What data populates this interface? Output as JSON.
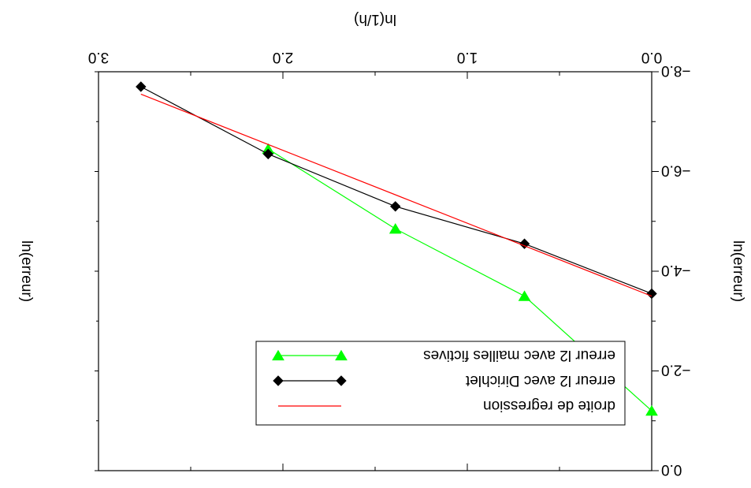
{
  "chart_data": {
    "type": "line",
    "title": "",
    "xlabel": "ln(1/h)",
    "ylabel": "ln(erreur)",
    "ylabel_outer": "ln(erreur)",
    "xlim": [
      0.0,
      3.0
    ],
    "ylim": [
      -8.0,
      0.0
    ],
    "x_ticks": [
      0.0,
      1.0,
      2.0,
      3.0
    ],
    "x_tick_labels": [
      "0.0",
      "1.0",
      "2.0",
      "3.0"
    ],
    "y_ticks": [
      -8.0,
      -6.0,
      -4.0,
      -2.0,
      0.0
    ],
    "y_tick_labels": [
      "−8.0",
      "−6.0",
      "−4.0",
      "−2.0",
      "0.0"
    ],
    "grid": false,
    "legend_position": "bottom-right",
    "orientation": "rotated 180 degrees",
    "series": [
      {
        "name": "erreur l2 avec mailles fictives",
        "color": "#00ff00",
        "marker": "triangle",
        "x": [
          0.0,
          0.69,
          1.39,
          2.08
        ],
        "y": [
          -1.2,
          -3.5,
          -4.85,
          -6.45
        ]
      },
      {
        "name": "erreur l2 avec Dirichlet",
        "color": "#000000",
        "marker": "diamond",
        "x": [
          0.0,
          0.69,
          1.39,
          2.08,
          2.77
        ],
        "y": [
          -3.55,
          -4.55,
          -5.3,
          -6.35,
          -7.7
        ]
      },
      {
        "name": "droite de regression",
        "color": "#ff0000",
        "marker": "none",
        "x": [
          0.0,
          2.77
        ],
        "y": [
          -3.5,
          -7.55
        ]
      }
    ]
  }
}
